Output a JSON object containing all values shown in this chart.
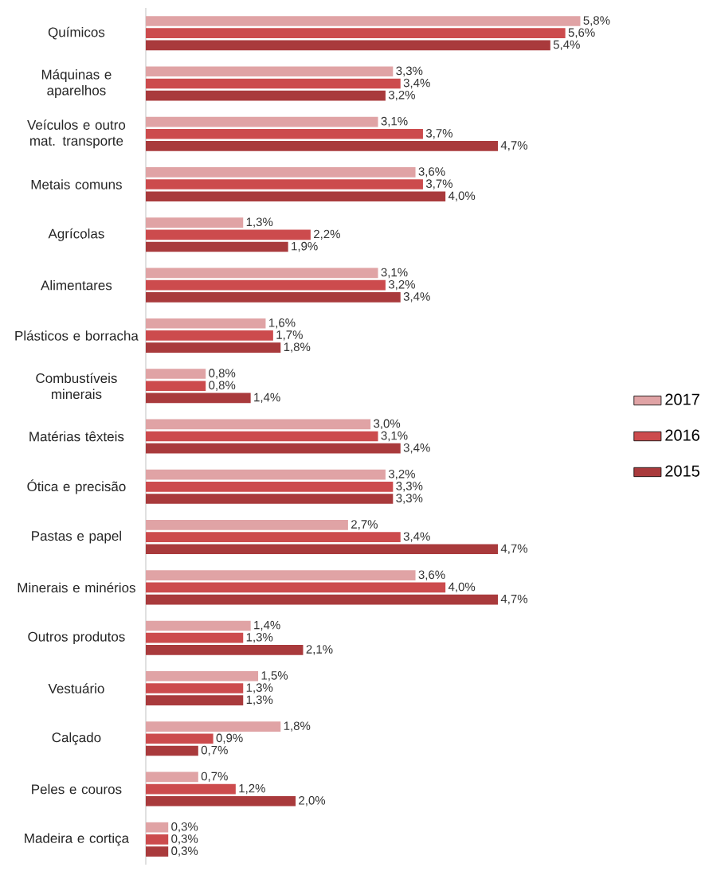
{
  "chart_data": {
    "type": "bar",
    "orientation": "horizontal",
    "legend": "right",
    "categories": [
      "Químicos",
      "Máquinas e aparelhos",
      "Veículos e outro mat. transporte",
      "Metais comuns",
      "Agrícolas",
      "Alimentares",
      "Plásticos e borracha",
      "Combustíveis minerais",
      "Matérias têxteis",
      "Ótica e precisão",
      "Pastas e papel",
      "Minerais e minérios",
      "Outros produtos",
      "Vestuário",
      "Calçado",
      "Peles e couros",
      "Madeira e cortiça"
    ],
    "series": [
      {
        "name": "2017",
        "color": "#e0a3a5",
        "values": [
          5.8,
          3.3,
          3.1,
          3.6,
          1.3,
          3.1,
          1.6,
          0.8,
          3.0,
          3.2,
          2.7,
          3.6,
          1.4,
          1.5,
          1.8,
          0.7,
          0.3
        ],
        "value_labels": [
          "5,8%",
          "3,3%",
          "3,1%",
          "3,6%",
          "1,3%",
          "3,1%",
          "1,6%",
          "0,8%",
          "3,0%",
          "3,2%",
          "2,7%",
          "3,6%",
          "1,4%",
          "1,5%",
          "1,8%",
          "0,7%",
          "0,3%"
        ]
      },
      {
        "name": "2016",
        "color": "#cc4b4d",
        "values": [
          5.6,
          3.4,
          3.7,
          3.7,
          2.2,
          3.2,
          1.7,
          0.8,
          3.1,
          3.3,
          3.4,
          4.0,
          1.3,
          1.3,
          0.9,
          1.2,
          0.3
        ],
        "value_labels": [
          "5,6%",
          "3,4%",
          "3,7%",
          "3,7%",
          "2,2%",
          "3,2%",
          "1,7%",
          "0,8%",
          "3,1%",
          "3,3%",
          "3,4%",
          "4,0%",
          "1,3%",
          "1,3%",
          "0,9%",
          "1,2%",
          "0,3%"
        ]
      },
      {
        "name": "2015",
        "color": "#a93a3c",
        "values": [
          5.4,
          3.2,
          4.7,
          4.0,
          1.9,
          3.4,
          1.8,
          1.4,
          3.4,
          3.3,
          4.7,
          4.7,
          2.1,
          1.3,
          0.7,
          2.0,
          0.3
        ],
        "value_labels": [
          "5,4%",
          "3,2%",
          "4,7%",
          "4,0%",
          "1,9%",
          "3,4%",
          "1,8%",
          "1,4%",
          "3,4%",
          "3,3%",
          "4,7%",
          "4,7%",
          "2,1%",
          "1,3%",
          "0,7%",
          "2,0%",
          "0,3%"
        ]
      }
    ]
  }
}
